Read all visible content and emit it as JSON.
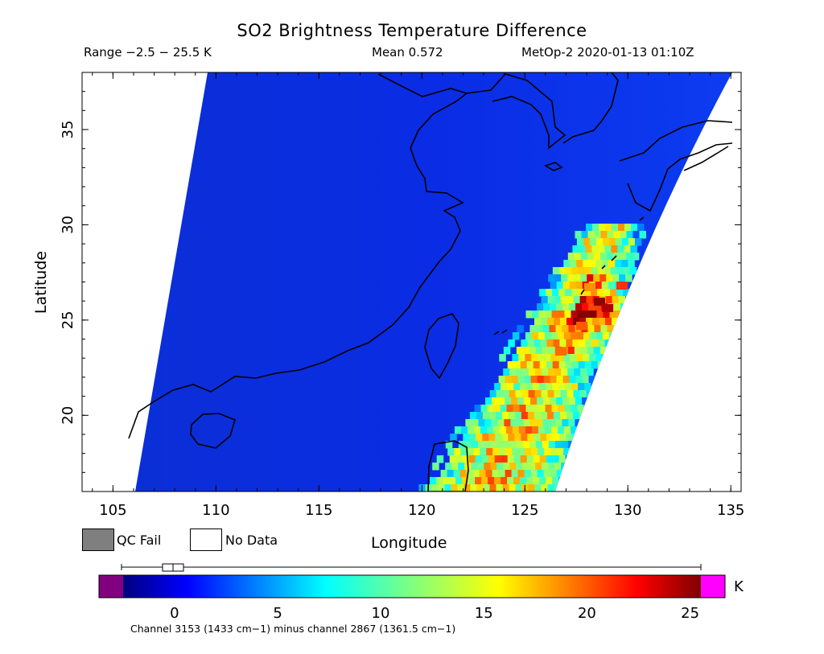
{
  "header": {
    "title": "SO2 Brightness Temperature Difference",
    "range": "Range −2.5 − 25.5 K",
    "mean": "Mean 0.572",
    "satellite_time": "MetOp-2 2020-01-13 01:10Z"
  },
  "axes": {
    "xlabel": "Longitude",
    "ylabel": "Latitude",
    "x_ticks": [
      "105",
      "110",
      "115",
      "120",
      "125",
      "130",
      "135"
    ],
    "y_ticks": [
      "20",
      "25",
      "30",
      "35"
    ],
    "lon_range": [
      103.5,
      135.5
    ],
    "lat_range": [
      16,
      38
    ]
  },
  "legend": {
    "qc_fail": "QC Fail",
    "no_data": "No Data",
    "qc_fail_color": "#7f7f7f",
    "no_data_color": "#ffffff"
  },
  "colorbar": {
    "unit": "K",
    "ticks": [
      "0",
      "5",
      "10",
      "15",
      "20",
      "25"
    ],
    "caption": "Channel 3153 (1433 cm−1) minus channel 2867 (1361.5 cm−1)",
    "range": [
      -2.5,
      25.5
    ],
    "underflow_color": "#800080",
    "overflow_color": "#ff00ff"
  },
  "colors": {
    "background_field": "#0a2ee0",
    "coastline": "#000000"
  }
}
